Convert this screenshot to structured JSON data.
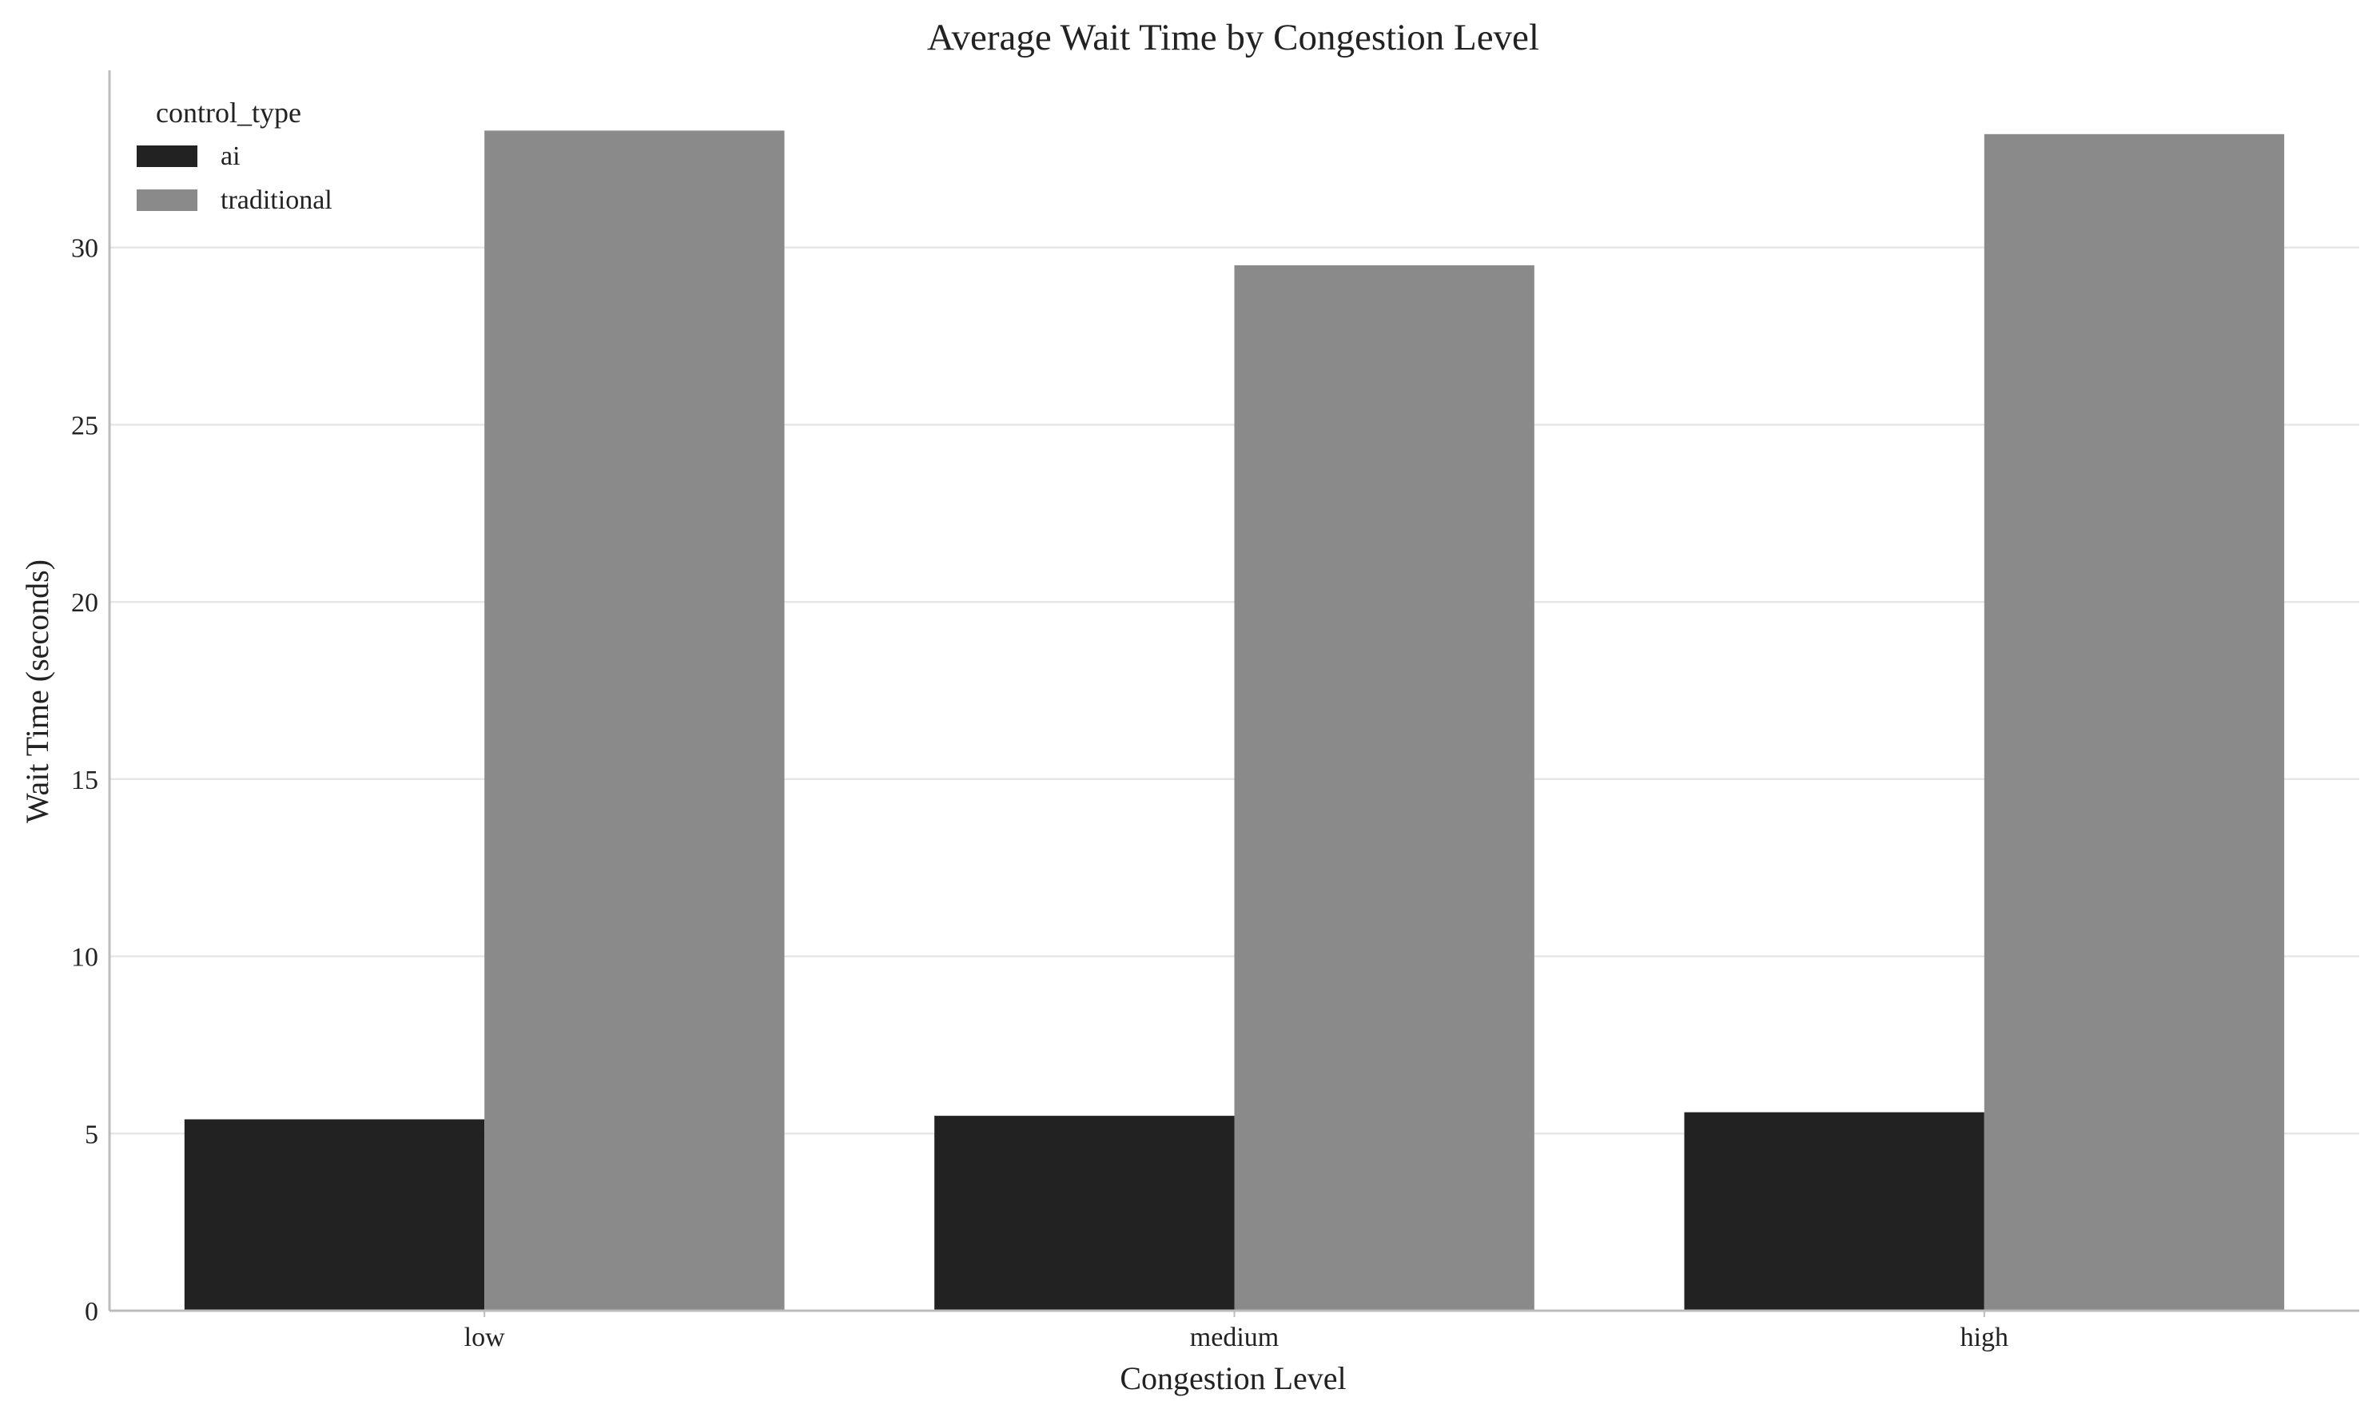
{
  "chart_data": {
    "type": "bar",
    "title": "Average Wait Time by Congestion Level",
    "xlabel": "Congestion Level",
    "ylabel": "Wait Time (seconds)",
    "categories": [
      "low",
      "medium",
      "high"
    ],
    "series": [
      {
        "name": "ai",
        "color": "#222222",
        "values": [
          5.4,
          5.5,
          5.6
        ]
      },
      {
        "name": "traditional",
        "color": "#8a8a8a",
        "values": [
          33.3,
          29.5,
          33.2
        ]
      }
    ],
    "ylim": [
      0,
      35
    ],
    "yticks": [
      0,
      5,
      10,
      15,
      20,
      25,
      30
    ],
    "grid": "horizontal",
    "legend": {
      "title": "control_type",
      "placement": "top-left"
    }
  }
}
